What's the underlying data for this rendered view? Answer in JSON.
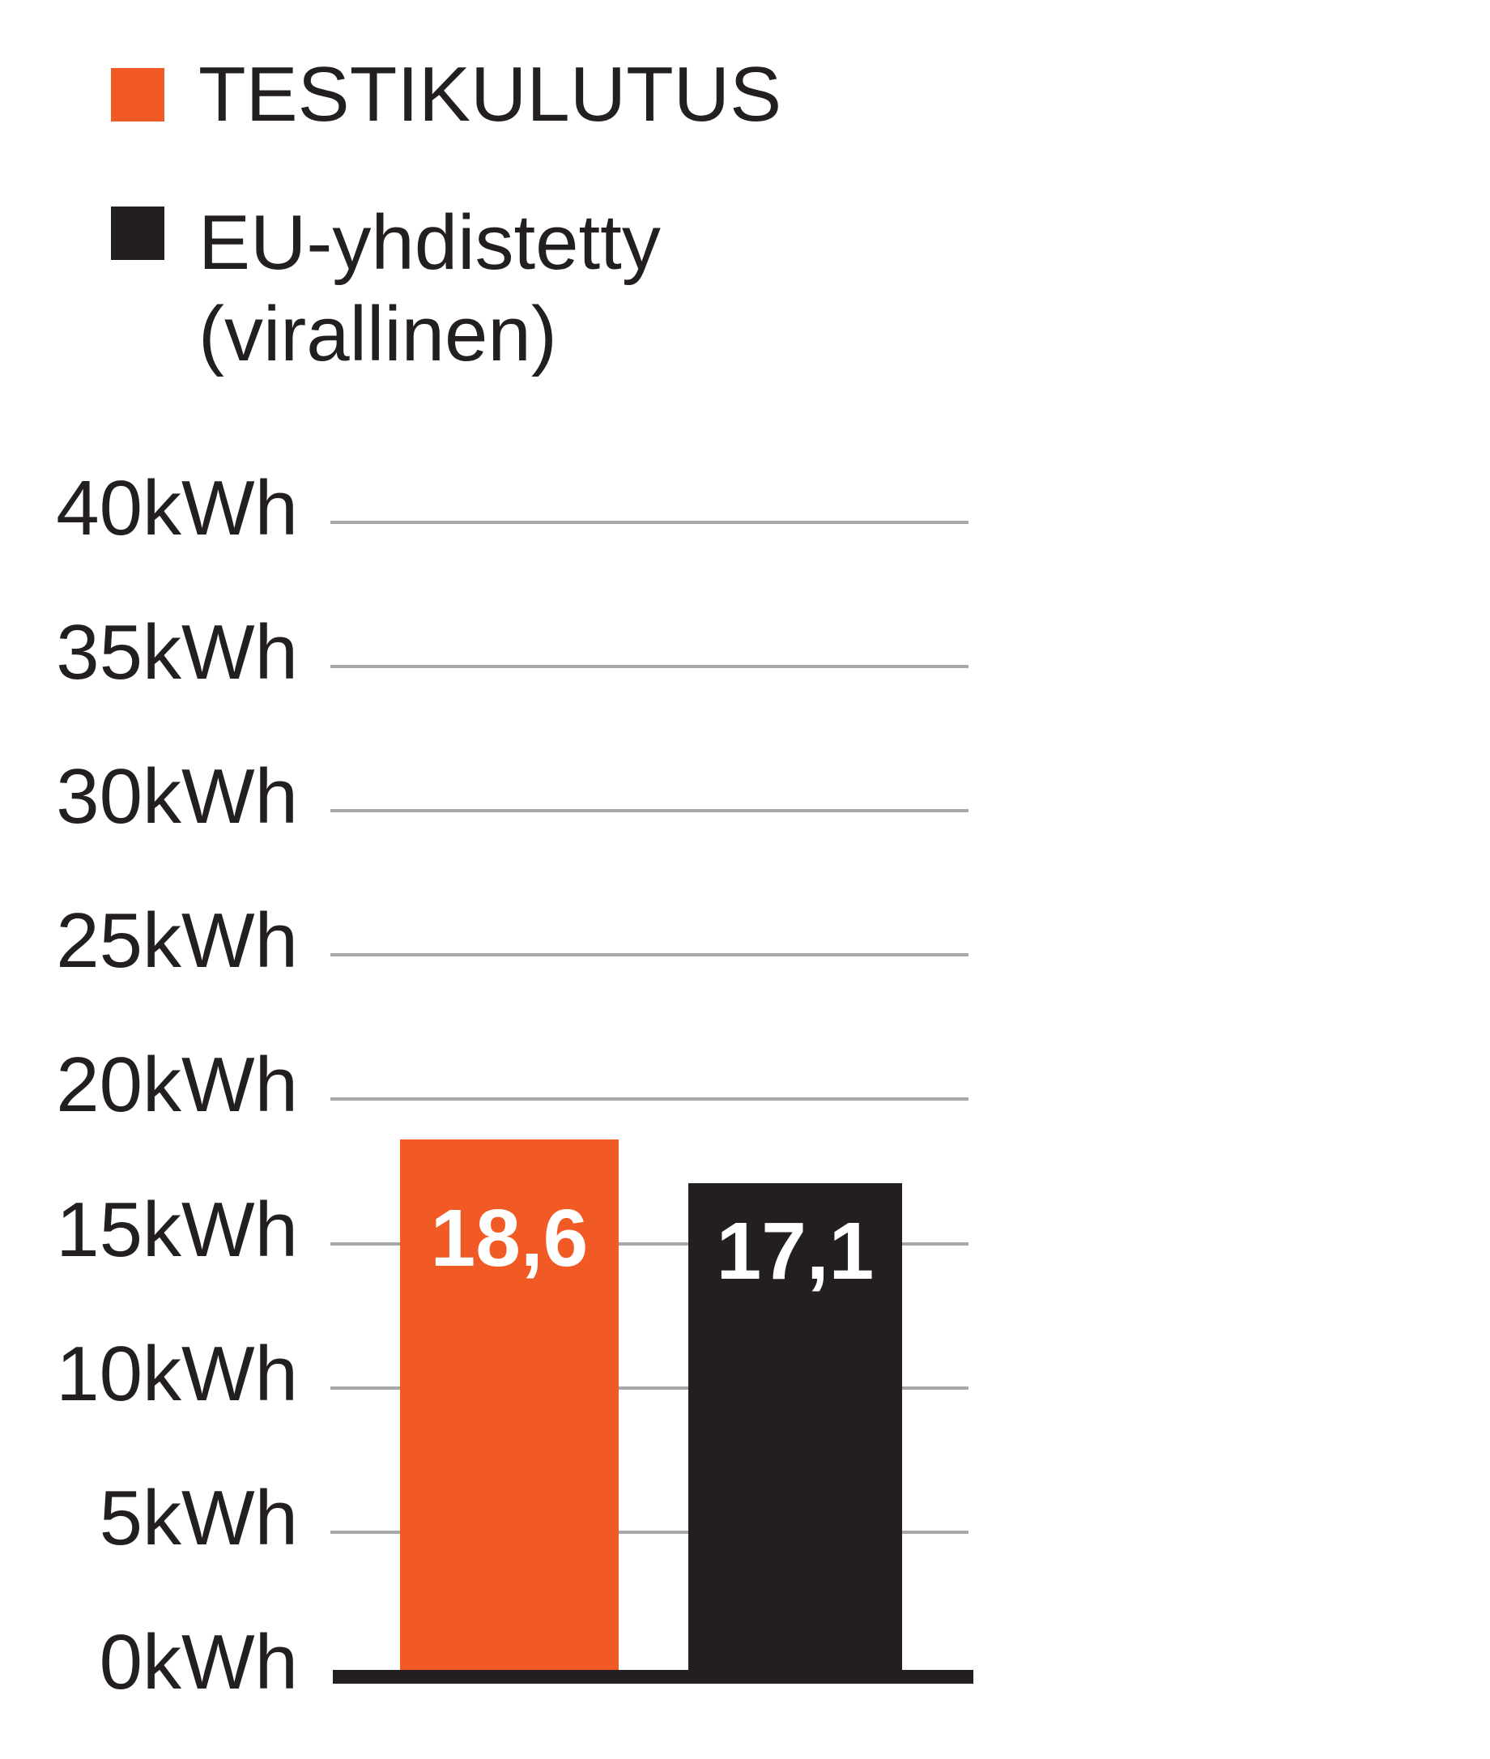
{
  "colors": {
    "accent_orange": "#F15A24",
    "bar_black": "#231F20",
    "gridline_gray": "#A8A8A8",
    "text": "#231F20",
    "value_text": "#FFFFFF",
    "background": "#FFFFFF"
  },
  "legend": {
    "items": [
      {
        "label": "TESTIKULUTUS",
        "color": "#F15A24"
      },
      {
        "label": "EU-yhdistetty\n(virallinen)",
        "color": "#231F20"
      }
    ]
  },
  "chart_data": {
    "type": "bar",
    "categories": [
      "TESTIKULUTUS",
      "EU-yhdistetty (virallinen)"
    ],
    "values": [
      18.6,
      17.1
    ],
    "value_labels": [
      "18,6",
      "17,1"
    ],
    "unit": "kWh",
    "title": "",
    "xlabel": "",
    "ylabel": "",
    "ylim": [
      0,
      40
    ],
    "yticks": [
      40,
      35,
      30,
      25,
      20,
      15,
      10,
      5,
      0
    ],
    "ytick_labels": [
      "40kWh",
      "35kWh",
      "30kWh",
      "25kWh",
      "20kWh",
      "15kWh",
      "10kWh",
      "5kWh",
      "0kWh"
    ],
    "grid": true,
    "legend_position": "top-left",
    "bar_colors": [
      "#F15A24",
      "#231F20"
    ],
    "value_label_color": "#FFFFFF"
  }
}
